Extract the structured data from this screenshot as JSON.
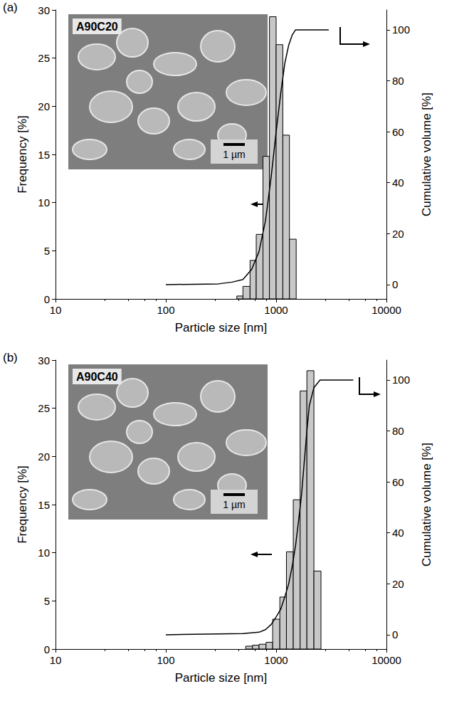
{
  "chart_data": [
    {
      "type": "histogram",
      "panel": "(a)",
      "inset_label": "A90C20",
      "scale_bar": "1 µm",
      "x_label": "Particle size [nm]",
      "y_label": "Frequency [%]",
      "y2_label": "Cumulative volume [%]",
      "log": "x",
      "grid": false,
      "xlim": [
        10,
        10000
      ],
      "xticks": [
        10,
        100,
        1000,
        10000
      ],
      "ylim": [
        0,
        30
      ],
      "yticks": [
        0,
        5,
        10,
        15,
        20,
        25,
        30
      ],
      "y2lim": [
        -5.6,
        107.8
      ],
      "y2ticks": [
        0,
        20,
        40,
        60,
        80,
        100
      ],
      "series": [
        {
          "type": "bar",
          "axis": "y",
          "color": "#c8c8c8",
          "bins": [
            440,
            500,
            580,
            660,
            760,
            870,
            1000,
            1150,
            1320,
            1520
          ],
          "values": [
            0.3,
            1.3,
            4.0,
            6.7,
            14.8,
            29.3,
            26.4,
            17.0,
            6.2
          ]
        },
        {
          "type": "line",
          "axis": "y2",
          "color": "#000000",
          "x": [
            100,
            300,
            400,
            500,
            600,
            700,
            800,
            900,
            1000,
            1100,
            1200,
            1300,
            1400,
            1500,
            3000
          ],
          "values": [
            0,
            0.3,
            1,
            2,
            6,
            13,
            25,
            42,
            60,
            75,
            87,
            94,
            98,
            100,
            100
          ]
        }
      ]
    },
    {
      "type": "histogram",
      "panel": "(b)",
      "inset_label": "A90C40",
      "scale_bar": "1 µm",
      "x_label": "Particle size [nm]",
      "y_label": "Frequency [%]",
      "y2_label": "Cumulative volume [%]",
      "log": "x",
      "grid": false,
      "xlim": [
        10,
        10000
      ],
      "xticks": [
        10,
        100,
        1000,
        10000
      ],
      "ylim": [
        0,
        30
      ],
      "yticks": [
        0,
        5,
        10,
        15,
        20,
        25,
        30
      ],
      "y2lim": [
        -5.6,
        107.8
      ],
      "y2ticks": [
        0,
        20,
        40,
        60,
        80,
        100
      ],
      "series": [
        {
          "type": "bar",
          "axis": "y",
          "color": "#c8c8c8",
          "bins": [
            530,
            610,
            700,
            810,
            930,
            1080,
            1240,
            1430,
            1650,
            1900,
            2200,
            2550
          ],
          "values": [
            0.3,
            0.4,
            0.5,
            0.7,
            3.1,
            5.4,
            10.1,
            15.5,
            26.8,
            28.9,
            8.1
          ]
        },
        {
          "type": "line",
          "axis": "y2",
          "color": "#000000",
          "x": [
            100,
            500,
            700,
            800,
            900,
            1000,
            1100,
            1200,
            1300,
            1400,
            1500,
            1600,
            1700,
            1800,
            1900,
            2000,
            2200,
            2500,
            5000
          ],
          "values": [
            0,
            0.5,
            1,
            2,
            4,
            7,
            10,
            15,
            20,
            27,
            35,
            45,
            55,
            68,
            80,
            90,
            97,
            100,
            100
          ]
        }
      ]
    }
  ]
}
